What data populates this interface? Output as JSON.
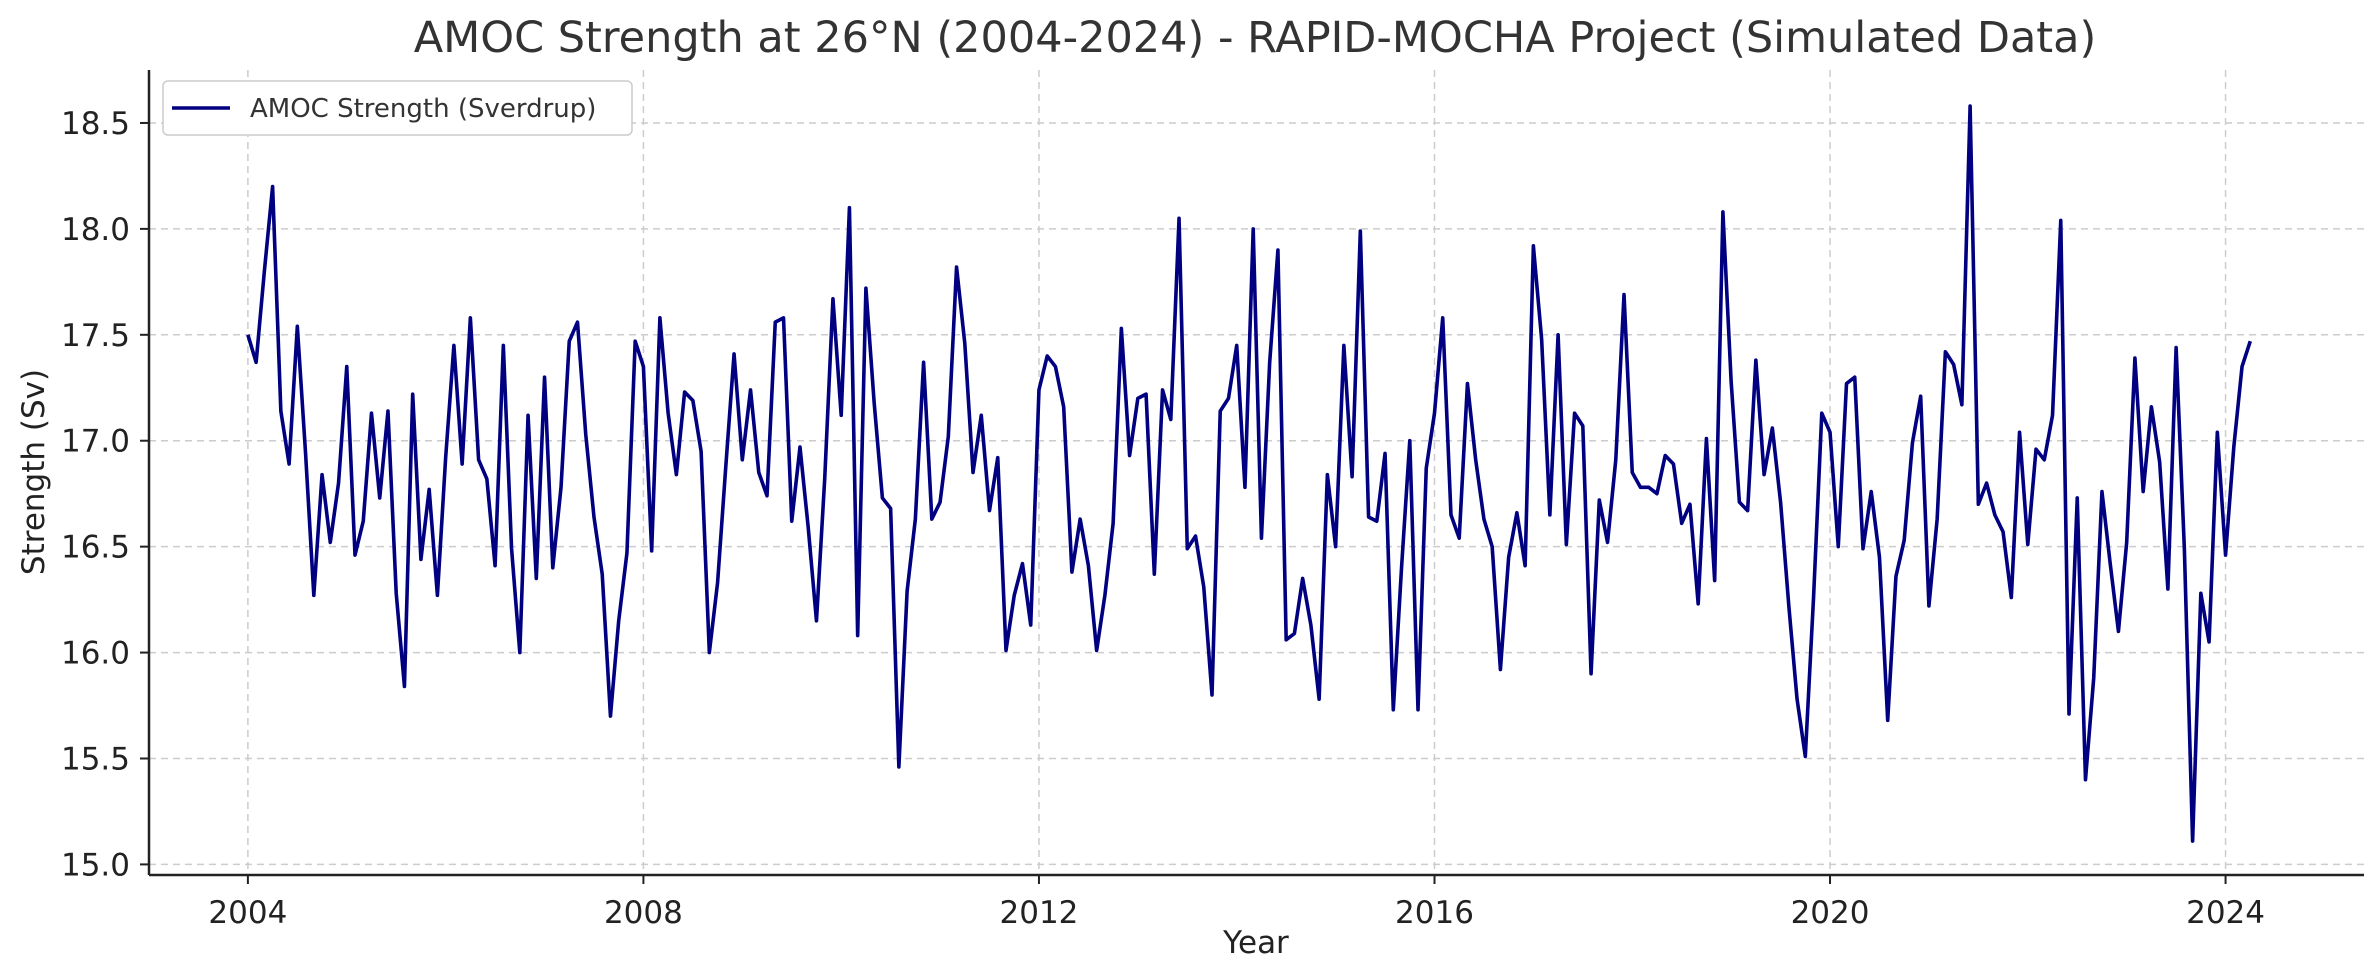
{
  "chart_data": {
    "type": "line",
    "title": "AMOC Strength at 26°N (2004-2024) - RAPID-MOCHA Project (Simulated Data)",
    "xlabel": "Year",
    "ylabel": "Strength (Sv)",
    "xlim": [
      2003,
      2025.4
    ],
    "ylim": [
      14.95,
      18.75
    ],
    "xticks": [
      2004,
      2008,
      2012,
      2016,
      2020,
      2024
    ],
    "yticks": [
      15.0,
      15.5,
      16.0,
      16.5,
      17.0,
      17.5,
      18.0,
      18.5
    ],
    "grid": true,
    "legend_position": "top-left",
    "series": [
      {
        "name": "AMOC Strength (Sverdrup)",
        "color": "#000080",
        "x_start": 2004,
        "x_step_months": 1,
        "values": [
          17.5,
          17.37,
          17.8,
          18.2,
          17.14,
          16.89,
          17.54,
          16.94,
          16.27,
          16.84,
          16.52,
          16.8,
          17.35,
          16.46,
          16.62,
          17.13,
          16.73,
          17.14,
          16.28,
          15.84,
          17.22,
          16.44,
          16.77,
          16.27,
          16.92,
          17.45,
          16.89,
          17.58,
          16.91,
          16.82,
          16.41,
          17.45,
          16.49,
          16.0,
          17.12,
          16.35,
          17.3,
          16.4,
          16.78,
          17.47,
          17.56,
          17.03,
          16.64,
          16.37,
          15.7,
          16.15,
          16.47,
          17.47,
          17.35,
          16.48,
          17.58,
          17.13,
          16.84,
          17.23,
          17.19,
          16.95,
          16.0,
          16.33,
          16.88,
          17.41,
          16.91,
          17.24,
          16.85,
          16.74,
          17.56,
          17.58,
          16.62,
          16.97,
          16.59,
          16.15,
          16.82,
          17.67,
          17.12,
          18.1,
          16.08,
          17.72,
          17.18,
          16.73,
          16.68,
          15.46,
          16.29,
          16.63,
          17.37,
          16.63,
          16.71,
          17.02,
          17.82,
          17.46,
          16.85,
          17.12,
          16.67,
          16.92,
          16.01,
          16.27,
          16.42,
          16.13,
          17.24,
          17.4,
          17.35,
          17.16,
          16.38,
          16.63,
          16.41,
          16.01,
          16.27,
          16.61,
          17.53,
          16.93,
          17.2,
          17.22,
          16.37,
          17.24,
          17.1,
          18.05,
          16.49,
          16.55,
          16.31,
          15.8,
          17.14,
          17.2,
          17.45,
          16.78,
          18.0,
          16.54,
          17.37,
          17.9,
          16.06,
          16.09,
          16.35,
          16.13,
          15.78,
          16.84,
          16.5,
          17.45,
          16.83,
          17.99,
          16.64,
          16.62,
          16.94,
          15.73,
          16.4,
          17.0,
          15.73,
          16.87,
          17.13,
          17.58,
          16.65,
          16.54,
          17.27,
          16.91,
          16.63,
          16.5,
          15.92,
          16.45,
          16.66,
          16.41,
          17.92,
          17.48,
          16.65,
          17.5,
          16.51,
          17.13,
          17.07,
          15.9,
          16.72,
          16.52,
          16.91,
          17.69,
          16.85,
          16.78,
          16.78,
          16.75,
          16.93,
          16.89,
          16.61,
          16.7,
          16.23,
          17.01,
          16.34,
          18.08,
          17.28,
          16.71,
          16.67,
          17.38,
          16.84,
          17.06,
          16.71,
          16.22,
          15.78,
          15.51,
          16.26,
          17.13,
          17.04,
          16.5,
          17.27,
          17.3,
          16.49,
          16.76,
          16.45,
          15.68,
          16.36,
          16.53,
          16.99,
          17.21,
          16.22,
          16.63,
          17.42,
          17.36,
          17.17,
          18.58,
          16.7,
          16.8,
          16.65,
          16.57,
          16.26,
          17.04,
          16.51,
          16.96,
          16.91,
          17.12,
          18.04,
          15.71,
          16.73,
          15.4,
          15.88,
          16.76,
          16.42,
          16.1,
          16.52,
          17.39,
          16.76,
          17.16,
          16.9,
          16.3,
          17.44,
          16.49,
          15.11,
          16.28,
          16.05,
          17.04,
          16.46,
          16.97,
          17.35,
          17.47
        ]
      }
    ]
  }
}
